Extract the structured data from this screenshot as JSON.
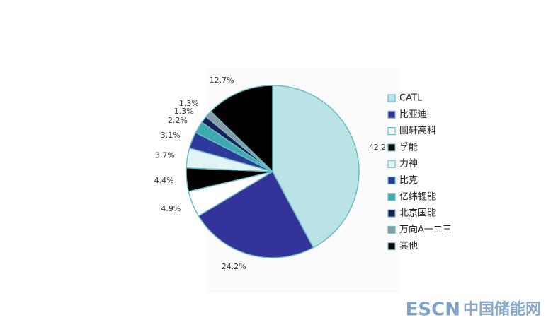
{
  "chart_data": {
    "type": "pie",
    "categories": [
      "CATL",
      "比亚迪",
      "国轩高科",
      "孚能",
      "力神",
      "比克",
      "亿纬锂能",
      "北京国能",
      "万向A一二三",
      "其他"
    ],
    "values": [
      42.2,
      24.2,
      4.9,
      4.4,
      3.7,
      3.1,
      2.2,
      1.3,
      1.3,
      12.7
    ],
    "value_labels": [
      "42.2%",
      "24.2%",
      "4.9%",
      "4.4%",
      "3.7%",
      "3.1%",
      "2.2%",
      "1.3%",
      "1.3%",
      "12.7%"
    ],
    "colors": [
      "#b9e3e6",
      "#333399",
      "#ffffff",
      "#000000",
      "#e0f3f5",
      "#2e3a9a",
      "#3fa9b0",
      "#1a1f5a",
      "#8a9aa0",
      "#000000"
    ],
    "legend": "right"
  },
  "watermark": {
    "brand": "ESCN",
    "site": "中国储能网"
  }
}
